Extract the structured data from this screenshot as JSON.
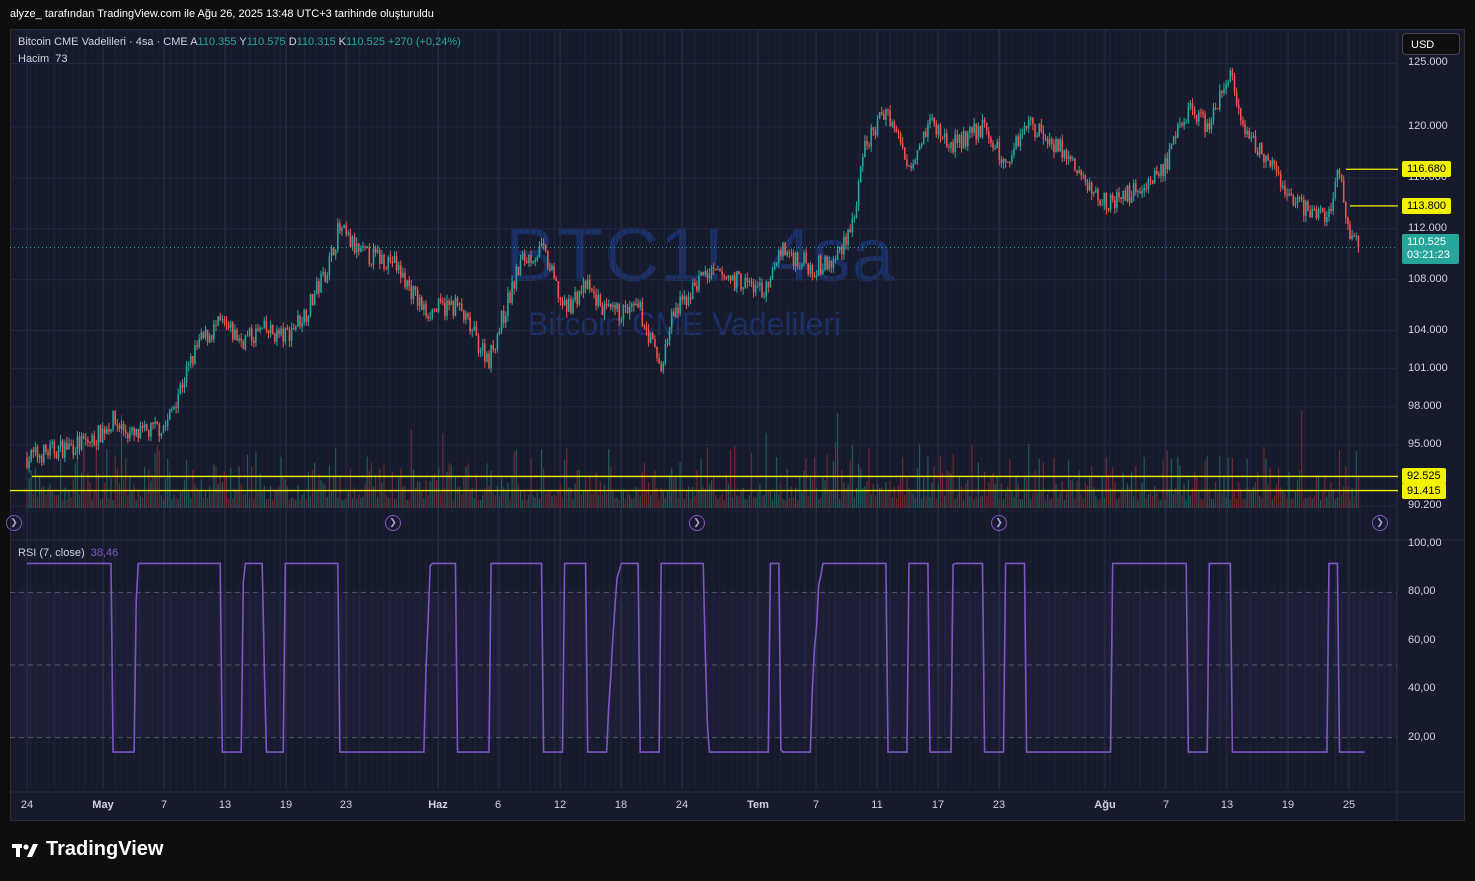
{
  "header": {
    "note": "alyze_ tarafından TradingView.com ile Ağu 26, 2025 13:48 UTC+3 tarihinde oluşturuldu"
  },
  "legend": {
    "title": "Bitcoin CME Vadelileri · 4sa · CME",
    "ohlc": [
      {
        "k": "A",
        "v": "110.355"
      },
      {
        "k": "Y",
        "v": "110.575"
      },
      {
        "k": "D",
        "v": "110.315"
      },
      {
        "k": "K",
        "v": "110.525"
      }
    ],
    "change": "+270 (+0,24%)",
    "volume_label": "Hacim",
    "volume_value": "73",
    "rsi_label": "RSI (7, close)",
    "rsi_value": "38,46"
  },
  "currency_button": "USD",
  "watermark": {
    "symbol": "BTC1!, 4sa",
    "name": "Bitcoin CME Vadelileri"
  },
  "brand": {
    "name": "TradingView"
  },
  "icons": {
    "logo": "tradingview-logo-icon",
    "arrow": "arrow-right-circle-icon"
  },
  "colors": {
    "up": "#26a69a",
    "down": "#ef5350",
    "rsi": "#7e57c2",
    "hline": "#f2f200"
  },
  "chart_data": [
    {
      "type": "candlestick",
      "title": "Bitcoin CME Vadelileri · 4sa · CME",
      "y_axis_labels": [
        "125.000",
        "120.000",
        "116.000",
        "112.000",
        "108.000",
        "104.000",
        "101.000",
        "98.000",
        "95.000",
        "90.200"
      ],
      "y_range": [
        90200,
        125900
      ],
      "x_tick_labels": [
        "24",
        "May",
        "7",
        "13",
        "19",
        "23",
        "Haz",
        "6",
        "12",
        "18",
        "24",
        "Tem",
        "7",
        "11",
        "17",
        "23",
        "Ağu",
        "7",
        "13",
        "19",
        "25"
      ],
      "last_price": "110.525",
      "countdown": "03:21:23",
      "horizontal_lines": [
        "116.680",
        "113.800",
        "92.525",
        "91.415"
      ],
      "close_path": [
        {
          "d": "Apr 24",
          "c": 94000
        },
        {
          "d": "Apr 27",
          "c": 94700
        },
        {
          "d": "Apr 30",
          "c": 95300
        },
        {
          "d": "May 2",
          "c": 96900
        },
        {
          "d": "May 4",
          "c": 95600
        },
        {
          "d": "May 7",
          "c": 96600
        },
        {
          "d": "May 8",
          "c": 99000
        },
        {
          "d": "May 10",
          "c": 103000
        },
        {
          "d": "May 12",
          "c": 104500
        },
        {
          "d": "May 14",
          "c": 103200
        },
        {
          "d": "May 16",
          "c": 104000
        },
        {
          "d": "May 18",
          "c": 103500
        },
        {
          "d": "May 20",
          "c": 105500
        },
        {
          "d": "May 22",
          "c": 109000
        },
        {
          "d": "May 23",
          "c": 112000
        },
        {
          "d": "May 25",
          "c": 110000
        },
        {
          "d": "May 28",
          "c": 109500
        },
        {
          "d": "May 31",
          "c": 105500
        },
        {
          "d": "Jun 3",
          "c": 106000
        },
        {
          "d": "Jun 5",
          "c": 103000
        },
        {
          "d": "Jun 6",
          "c": 101800
        },
        {
          "d": "Jun 9",
          "c": 109500
        },
        {
          "d": "Jun 11",
          "c": 110300
        },
        {
          "d": "Jun 13",
          "c": 105600
        },
        {
          "d": "Jun 15",
          "c": 107500
        },
        {
          "d": "Jun 17",
          "c": 105300
        },
        {
          "d": "Jun 20",
          "c": 105600
        },
        {
          "d": "Jun 22",
          "c": 101000
        },
        {
          "d": "Jun 23",
          "c": 105000
        },
        {
          "d": "Jun 26",
          "c": 108500
        },
        {
          "d": "Jun 29",
          "c": 108000
        },
        {
          "d": "Jul 2",
          "c": 107000
        },
        {
          "d": "Jul 3",
          "c": 110500
        },
        {
          "d": "Jul 6",
          "c": 109000
        },
        {
          "d": "Jul 8",
          "c": 109200
        },
        {
          "d": "Jul 10",
          "c": 113000
        },
        {
          "d": "Jul 11",
          "c": 118500
        },
        {
          "d": "Jul 13",
          "c": 121500
        },
        {
          "d": "Jul 15",
          "c": 117000
        },
        {
          "d": "Jul 17",
          "c": 120500
        },
        {
          "d": "Jul 19",
          "c": 118500
        },
        {
          "d": "Jul 22",
          "c": 120000
        },
        {
          "d": "Jul 24",
          "c": 117000
        },
        {
          "d": "Jul 26",
          "c": 120500
        },
        {
          "d": "Jul 29",
          "c": 118500
        },
        {
          "d": "Aug 1",
          "c": 115000
        },
        {
          "d": "Aug 3",
          "c": 114000
        },
        {
          "d": "Aug 6",
          "c": 115500
        },
        {
          "d": "Aug 8",
          "c": 117000
        },
        {
          "d": "Aug 10",
          "c": 121500
        },
        {
          "d": "Aug 12",
          "c": 120000
        },
        {
          "d": "Aug 14",
          "c": 124500
        },
        {
          "d": "Aug 15",
          "c": 119500
        },
        {
          "d": "Aug 17",
          "c": 118000
        },
        {
          "d": "Aug 19",
          "c": 115000
        },
        {
          "d": "Aug 21",
          "c": 113500
        },
        {
          "d": "Aug 23",
          "c": 113000
        },
        {
          "d": "Aug 24",
          "c": 116500
        },
        {
          "d": "Aug 25",
          "c": 112000
        },
        {
          "d": "Aug 26",
          "c": 110525
        }
      ]
    },
    {
      "type": "line",
      "title": "RSI (7, close)",
      "y_axis_labels": [
        "100,00",
        "80,00",
        "60,00",
        "40,00",
        "20,00"
      ],
      "y_range": [
        0,
        100
      ],
      "bands": [
        80,
        50,
        20
      ],
      "last_value": "38,46"
    }
  ]
}
